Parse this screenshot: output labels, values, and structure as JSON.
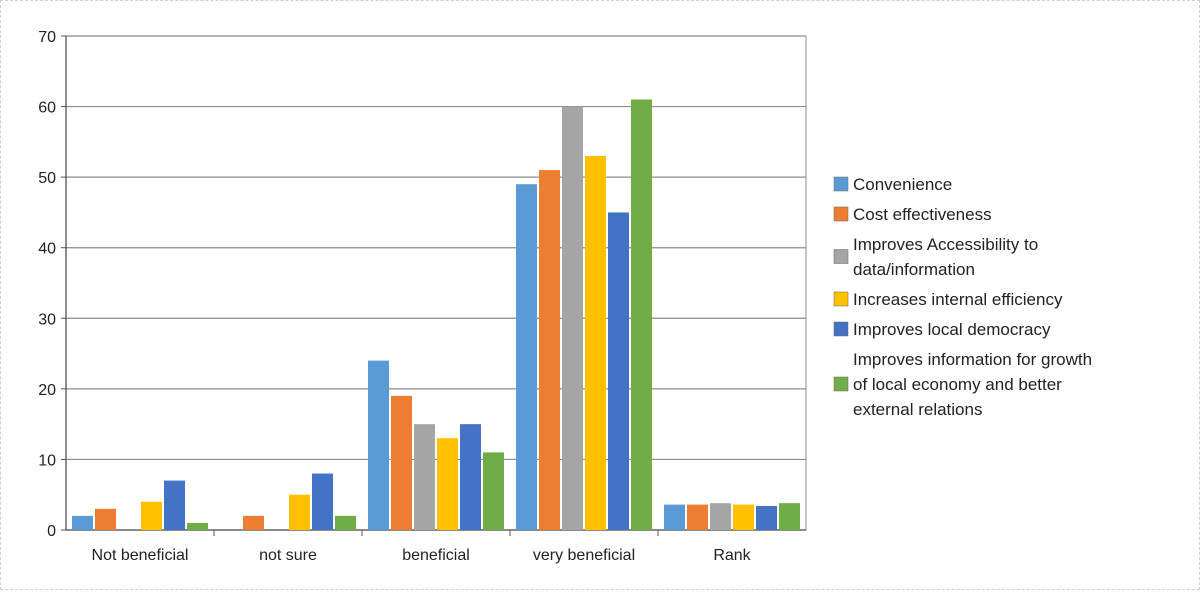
{
  "chart_data": {
    "type": "bar",
    "title": "",
    "xlabel": "",
    "ylabel": "",
    "ylim": [
      0,
      70
    ],
    "yticks": [
      0,
      10,
      20,
      30,
      40,
      50,
      60,
      70
    ],
    "categories": [
      "Not beneficial",
      "not sure",
      "beneficial",
      "very beneficial",
      "Rank"
    ],
    "grid": true,
    "legend_position": "right",
    "series": [
      {
        "name": "Convenience",
        "color": "#5b9bd5",
        "values": [
          2,
          0,
          24,
          49,
          3.6
        ]
      },
      {
        "name": "Cost effectiveness",
        "color": "#ed7d31",
        "values": [
          3,
          2,
          19,
          51,
          3.6
        ]
      },
      {
        "name": "Improves Accessibility to data/information",
        "legend_lines": [
          "Improves Accessibility to",
          "data/information"
        ],
        "color": "#a5a5a5",
        "values": [
          0,
          0,
          15,
          60,
          3.8
        ]
      },
      {
        "name": "Increases internal efficiency",
        "color": "#ffc000",
        "values": [
          4,
          5,
          13,
          53,
          3.6
        ]
      },
      {
        "name": "Improves local democracy",
        "color": "#4472c4",
        "values": [
          7,
          8,
          15,
          45,
          3.4
        ]
      },
      {
        "name": "Improves information for growth of local economy and better external relations",
        "legend_lines": [
          "Improves information for growth",
          "of local economy and better",
          "external relations"
        ],
        "color": "#70ad47",
        "values": [
          1,
          2,
          11,
          61,
          3.8
        ]
      }
    ]
  }
}
